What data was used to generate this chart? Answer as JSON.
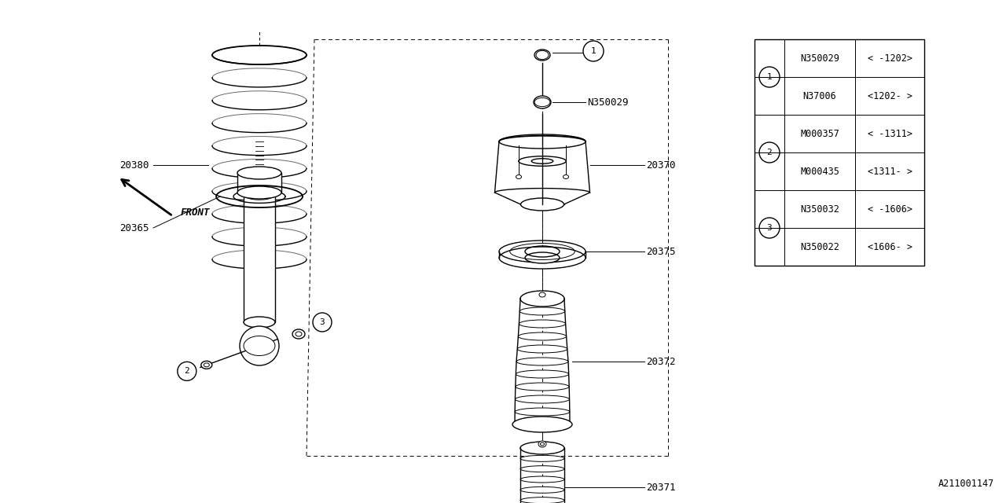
{
  "bg_color": "#ffffff",
  "line_color": "#000000",
  "watermark": "A211001147",
  "table": {
    "rows": [
      {
        "circle": "1",
        "part": "N350029",
        "spec": "< -1202>"
      },
      {
        "circle": "1",
        "part": "N37006",
        "spec": "<1202- >"
      },
      {
        "circle": "2",
        "part": "M000357",
        "spec": "< -1311>"
      },
      {
        "circle": "2",
        "part": "M000435",
        "spec": "<1311- >"
      },
      {
        "circle": "3",
        "part": "N350032",
        "spec": "< -1606>"
      },
      {
        "circle": "3",
        "part": "N350022",
        "spec": "<1606- >"
      }
    ]
  }
}
